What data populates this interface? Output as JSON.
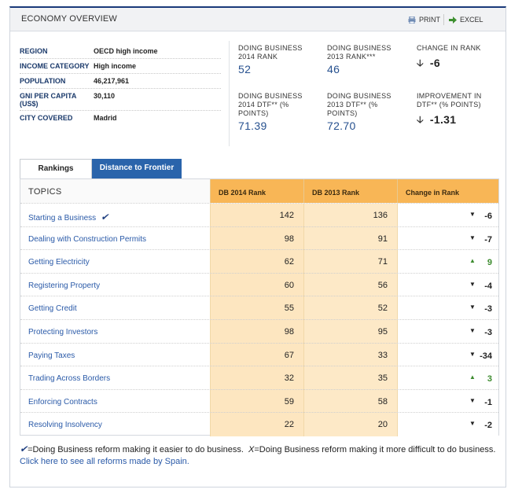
{
  "header": {
    "title": "ECONOMY OVERVIEW",
    "print_label": "PRINT",
    "excel_label": "EXCEL"
  },
  "info": [
    {
      "key": "REGION",
      "value": "OECD high income"
    },
    {
      "key": "INCOME CATEGORY",
      "value": "High income"
    },
    {
      "key": "POPULATION",
      "value": "46,217,961"
    },
    {
      "key": "GNI PER CAPITA (US$)",
      "value": "30,110"
    },
    {
      "key": "CITY COVERED",
      "value": "Madrid"
    }
  ],
  "stats": {
    "db2014_rank": {
      "label": "DOING BUSINESS 2014 RANK",
      "value": "52"
    },
    "db2013_rank": {
      "label": "DOING BUSINESS 2013 RANK***",
      "value": "46"
    },
    "change_rank": {
      "label": "CHANGE IN RANK",
      "value": "-6"
    },
    "db2014_dtf": {
      "label": "DOING BUSINESS 2014 DTF** (% POINTS)",
      "value": "71.39"
    },
    "db2013_dtf": {
      "label": "DOING BUSINESS 2013 DTF** (% POINTS)",
      "value": "72.70"
    },
    "improvement_dtf": {
      "label": "IMPROVEMENT IN DTF** (% POINTS)",
      "value": "-1.31"
    }
  },
  "tabs": {
    "rankings": "Rankings",
    "distance": "Distance to Frontier"
  },
  "table": {
    "headers": [
      "TOPICS",
      "DB 2014 Rank",
      "DB 2013 Rank",
      "Change in Rank"
    ],
    "rows": [
      {
        "topic": "Starting a Business",
        "db2014": "142",
        "db2013": "136",
        "change": "-6",
        "direction": "down",
        "reform": true
      },
      {
        "topic": "Dealing with Construction Permits",
        "db2014": "98",
        "db2013": "91",
        "change": "-7",
        "direction": "down",
        "reform": false
      },
      {
        "topic": "Getting Electricity",
        "db2014": "62",
        "db2013": "71",
        "change": "9",
        "direction": "up",
        "reform": false
      },
      {
        "topic": "Registering Property",
        "db2014": "60",
        "db2013": "56",
        "change": "-4",
        "direction": "down",
        "reform": false
      },
      {
        "topic": "Getting Credit",
        "db2014": "55",
        "db2013": "52",
        "change": "-3",
        "direction": "down",
        "reform": false
      },
      {
        "topic": "Protecting Investors",
        "db2014": "98",
        "db2013": "95",
        "change": "-3",
        "direction": "down",
        "reform": false
      },
      {
        "topic": "Paying Taxes",
        "db2014": "67",
        "db2013": "33",
        "change": "-34",
        "direction": "down",
        "reform": false
      },
      {
        "topic": "Trading Across Borders",
        "db2014": "32",
        "db2013": "35",
        "change": "3",
        "direction": "up",
        "reform": false
      },
      {
        "topic": "Enforcing Contracts",
        "db2014": "59",
        "db2013": "58",
        "change": "-1",
        "direction": "down",
        "reform": false
      },
      {
        "topic": "Resolving Insolvency",
        "db2014": "22",
        "db2013": "20",
        "change": "-2",
        "direction": "down",
        "reform": false
      }
    ]
  },
  "footer": {
    "legend_easier": "=Doing Business reform making it easier to do business.",
    "legend_harder": "=Doing Business reform making it more difficult to do business.",
    "link": "Click here to see all reforms made by Spain."
  }
}
